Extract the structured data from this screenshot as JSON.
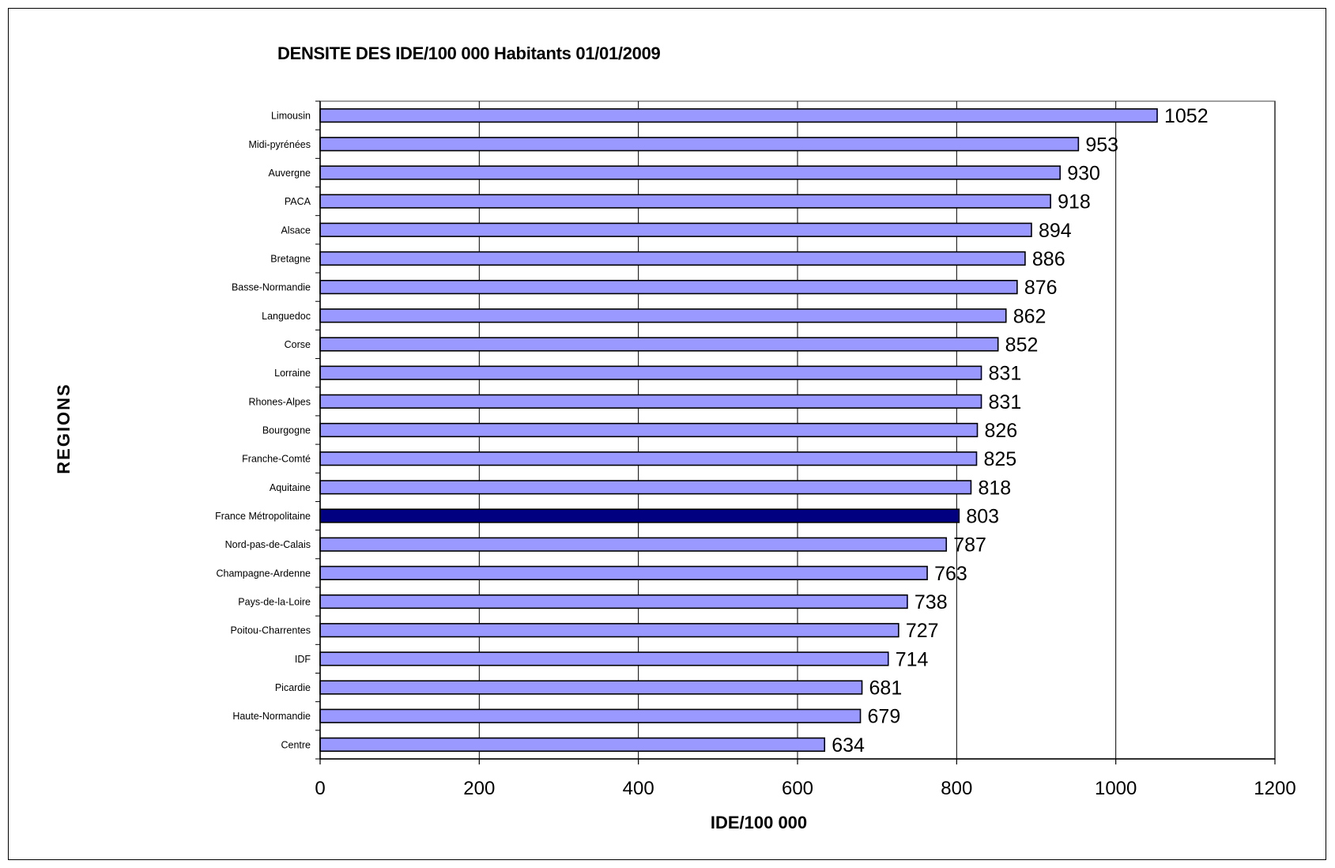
{
  "chart_data": {
    "type": "bar",
    "orientation": "horizontal",
    "title": "DENSITE DES IDE/100 000 Habitants 01/01/2009",
    "xlabel": "IDE/100 000",
    "ylabel": "REGIONS",
    "xlim": [
      0,
      1200
    ],
    "x_ticks": [
      0,
      200,
      400,
      600,
      800,
      1000,
      1200
    ],
    "grid": true,
    "legend": "none",
    "colors": {
      "bar": "#9999ff",
      "highlight": "#000080",
      "outline": "#000000",
      "grid": "#000000"
    },
    "highlight_category": "France Métropolitaine",
    "categories": [
      "Limousin",
      "Midi-pyrénées",
      "Auvergne",
      "PACA",
      "Alsace",
      "Bretagne",
      "Basse-Normandie",
      "Languedoc",
      "Corse",
      "Lorraine",
      "Rhones-Alpes",
      "Bourgogne",
      "Franche-Comté",
      "Aquitaine",
      "France Métropolitaine",
      "Nord-pas-de-Calais",
      "Champagne-Ardenne",
      "Pays-de-la-Loire",
      "Poitou-Charrentes",
      "IDF",
      "Picardie",
      "Haute-Normandie",
      "Centre"
    ],
    "values": [
      1052,
      953,
      930,
      918,
      894,
      886,
      876,
      862,
      852,
      831,
      831,
      826,
      825,
      818,
      803,
      787,
      763,
      738,
      727,
      714,
      681,
      679,
      634
    ],
    "data_labels": [
      "1052",
      "953",
      "930",
      "918",
      "894",
      "886",
      "876",
      "862",
      "852",
      "831",
      "831",
      "826",
      "825",
      "818",
      "803",
      "787",
      "763",
      "738",
      "727",
      "714",
      "681",
      "679",
      "634"
    ]
  }
}
